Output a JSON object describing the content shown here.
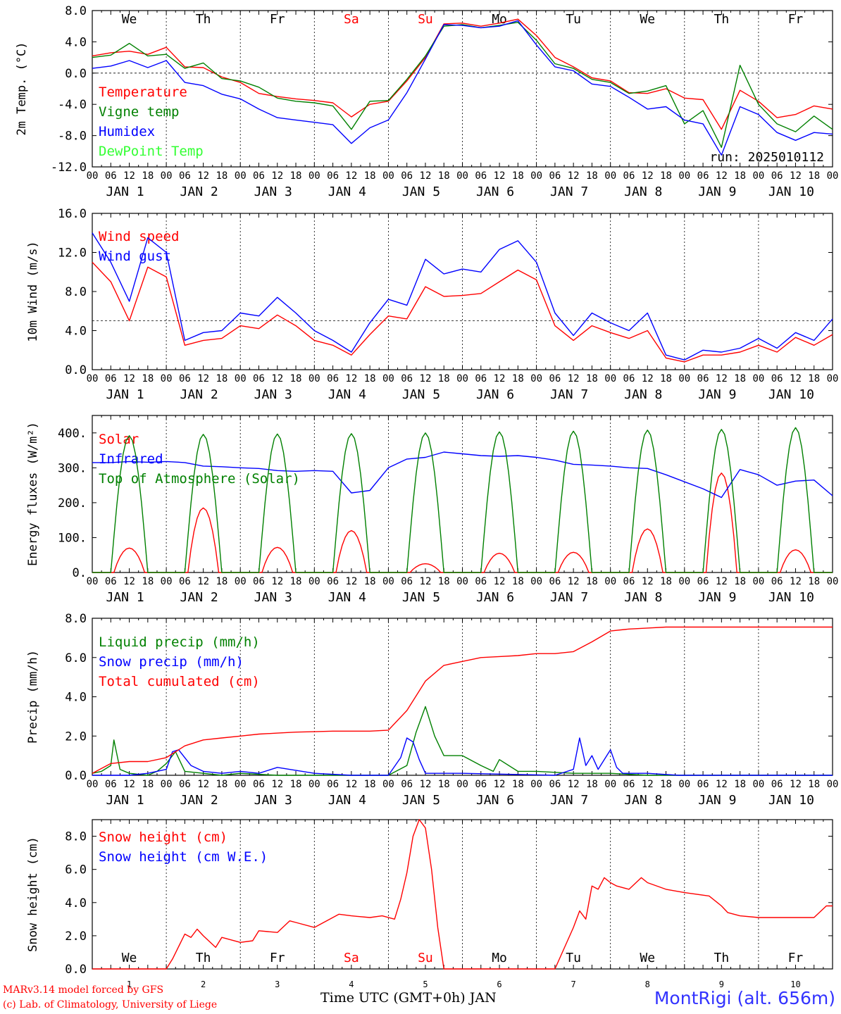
{
  "footer": {
    "model": "MARv3.14 model forced by GFS",
    "credit": "(c) Lab. of Climatology, University of Liege",
    "xlabel": "Time UTC (GMT+0h) JAN",
    "station": "MontRigi (alt. 656m)"
  },
  "days": {
    "weekdays": [
      "We",
      "Th",
      "Fr",
      "Sa",
      "Su",
      "Mo",
      "Tu",
      "We",
      "Th",
      "Fr"
    ],
    "weekend_color": "#ff0000",
    "date_labels": [
      "JAN  1",
      "JAN  2",
      "JAN  3",
      "JAN  4",
      "JAN  5",
      "JAN  6",
      "JAN  7",
      "JAN  8",
      "JAN  9",
      "JAN 10"
    ],
    "day_numbers": [
      "1",
      "2",
      "3",
      "4",
      "5",
      "6",
      "7",
      "8",
      "9",
      "10"
    ],
    "hour_ticks": [
      "00",
      "06",
      "12",
      "18"
    ],
    "final_tick": "00"
  },
  "chart_data": [
    {
      "type": "line",
      "ylabel": "2m Temp. (°C)",
      "ylim": [
        -12,
        8
      ],
      "yticks": [
        "8.0",
        "4.0",
        "0.0",
        "-4.0",
        "-8.0",
        "-12.0"
      ],
      "yvals": [
        8,
        4,
        0,
        -4,
        -8,
        -12
      ],
      "refline": 0,
      "annotation": "run: 2025010112",
      "x_unit": "hours since JAN 1 00 UTC",
      "series": [
        {
          "name": "Temperature",
          "color": "#ff0000",
          "x": [
            0,
            6,
            12,
            18,
            24,
            30,
            36,
            42,
            48,
            54,
            60,
            66,
            72,
            78,
            84,
            90,
            96,
            102,
            108,
            114,
            120,
            126,
            132,
            138,
            144,
            150,
            156,
            162,
            168,
            174,
            180,
            186,
            192,
            198,
            204,
            210,
            216,
            222,
            228,
            234,
            240
          ],
          "y": [
            2.2,
            2.6,
            2.8,
            2.4,
            3.3,
            0.8,
            0.7,
            -0.5,
            -1.2,
            -2.6,
            -3.0,
            -3.3,
            -3.5,
            -3.8,
            -5.6,
            -4.0,
            -3.6,
            -1.0,
            2.0,
            6.3,
            6.4,
            6.0,
            6.4,
            6.9,
            4.8,
            2.0,
            0.8,
            -0.6,
            -1.0,
            -2.5,
            -2.6,
            -2.0,
            -3.2,
            -3.4,
            -7.2,
            -2.2,
            -3.6,
            -5.7,
            -5.3,
            -4.2,
            -4.6
          ]
        },
        {
          "name": "Vigne temp",
          "color": "#008000",
          "x": [
            0,
            6,
            12,
            18,
            24,
            30,
            36,
            42,
            48,
            54,
            60,
            66,
            72,
            78,
            84,
            90,
            96,
            102,
            108,
            114,
            120,
            126,
            132,
            138,
            144,
            150,
            156,
            162,
            168,
            174,
            180,
            186,
            192,
            198,
            204,
            210,
            216,
            222,
            228,
            234,
            240
          ],
          "y": [
            2.0,
            2.3,
            3.8,
            2.2,
            2.4,
            0.6,
            1.3,
            -0.7,
            -1.0,
            -1.8,
            -3.2,
            -3.6,
            -3.8,
            -4.2,
            -7.2,
            -3.6,
            -3.5,
            -0.8,
            2.2,
            6.0,
            6.2,
            5.8,
            6.1,
            6.5,
            4.2,
            1.2,
            0.6,
            -0.8,
            -1.2,
            -2.6,
            -2.3,
            -1.6,
            -6.5,
            -4.8,
            -9.5,
            1.0,
            -4.0,
            -6.5,
            -7.5,
            -5.5,
            -7.2
          ]
        },
        {
          "name": "Humidex",
          "color": "#0000ff",
          "x": [
            0,
            6,
            12,
            18,
            24,
            30,
            36,
            42,
            48,
            54,
            60,
            66,
            72,
            78,
            84,
            90,
            96,
            102,
            108,
            114,
            120,
            126,
            132,
            138,
            144,
            150,
            156,
            162,
            168,
            174,
            180,
            186,
            192,
            198,
            204,
            210,
            216,
            222,
            228,
            234,
            240
          ],
          "y": [
            0.6,
            0.9,
            1.6,
            0.7,
            1.6,
            -1.2,
            -1.6,
            -2.7,
            -3.3,
            -4.6,
            -5.7,
            -6.0,
            -6.3,
            -6.6,
            -9.0,
            -7.0,
            -6.0,
            -2.5,
            1.8,
            6.2,
            6.1,
            5.8,
            6.0,
            6.7,
            3.6,
            0.8,
            0.3,
            -1.4,
            -1.7,
            -3.1,
            -4.6,
            -4.3,
            -6.0,
            -6.5,
            -10.5,
            -4.3,
            -5.3,
            -7.6,
            -8.6,
            -7.6,
            -7.8
          ]
        },
        {
          "name": "DewPoint Temp",
          "color": "#33ff33",
          "x": [],
          "y": []
        }
      ]
    },
    {
      "type": "line",
      "ylabel": "10m Wind (m/s)",
      "ylim": [
        0,
        16
      ],
      "yticks": [
        "16.0",
        "12.0",
        "8.0",
        "4.0",
        "0.0"
      ],
      "yvals": [
        16,
        12,
        8,
        4,
        0
      ],
      "refline": 5,
      "x_unit": "hours since JAN 1 00 UTC",
      "series": [
        {
          "name": "Wind speed",
          "color": "#ff0000",
          "x": [
            0,
            6,
            12,
            18,
            24,
            30,
            36,
            42,
            48,
            54,
            60,
            66,
            72,
            78,
            84,
            90,
            96,
            102,
            108,
            114,
            120,
            126,
            132,
            138,
            144,
            150,
            156,
            162,
            168,
            174,
            180,
            186,
            192,
            198,
            204,
            210,
            216,
            222,
            228,
            234,
            240
          ],
          "y": [
            11.0,
            9.0,
            5.0,
            10.5,
            9.5,
            2.5,
            3.0,
            3.2,
            4.5,
            4.2,
            5.6,
            4.5,
            3.0,
            2.5,
            1.5,
            3.6,
            5.5,
            5.2,
            8.5,
            7.5,
            7.6,
            7.8,
            9.0,
            10.2,
            9.2,
            4.5,
            3.0,
            4.5,
            3.8,
            3.2,
            4.0,
            1.2,
            0.8,
            1.5,
            1.5,
            1.8,
            2.5,
            1.8,
            3.3,
            2.5,
            3.6
          ]
        },
        {
          "name": "Wind gust",
          "color": "#0000ff",
          "x": [
            0,
            6,
            12,
            18,
            24,
            30,
            36,
            42,
            48,
            54,
            60,
            66,
            72,
            78,
            84,
            90,
            96,
            102,
            108,
            114,
            120,
            126,
            132,
            138,
            144,
            150,
            156,
            162,
            168,
            174,
            180,
            186,
            192,
            198,
            204,
            210,
            216,
            222,
            228,
            234,
            240
          ],
          "y": [
            14.0,
            11.0,
            7.0,
            13.5,
            12.0,
            3.0,
            3.8,
            4.0,
            5.8,
            5.5,
            7.4,
            5.8,
            4.0,
            3.0,
            1.8,
            4.8,
            7.2,
            6.6,
            11.3,
            9.8,
            10.3,
            10.0,
            12.3,
            13.2,
            11.0,
            5.8,
            3.5,
            5.8,
            4.8,
            4.0,
            5.8,
            1.5,
            1.0,
            2.0,
            1.8,
            2.2,
            3.2,
            2.2,
            3.8,
            3.0,
            5.2
          ]
        }
      ]
    },
    {
      "type": "line",
      "ylabel": "Energy fluxes (W/m²)",
      "ylim": [
        0,
        450
      ],
      "yticks": [
        "400.",
        "300.",
        "200.",
        "100.",
        "0."
      ],
      "yvals": [
        400,
        300,
        200,
        100,
        0
      ],
      "x_unit": "hours since JAN 1 00 UTC",
      "series": [
        {
          "name": "Solar",
          "color": "#ff0000",
          "peak_hours": [
            12,
            36,
            60,
            84,
            108,
            132,
            156,
            180,
            204,
            228
          ],
          "peaks": [
            70,
            185,
            72,
            120,
            25,
            55,
            58,
            125,
            285,
            65
          ]
        },
        {
          "name": "Infrared",
          "color": "#0000ff",
          "x": [
            0,
            6,
            12,
            18,
            24,
            30,
            36,
            42,
            48,
            54,
            60,
            66,
            72,
            78,
            84,
            90,
            96,
            102,
            108,
            114,
            120,
            126,
            132,
            138,
            144,
            150,
            156,
            162,
            168,
            174,
            180,
            186,
            192,
            198,
            204,
            210,
            216,
            222,
            228,
            234,
            240
          ],
          "y": [
            315,
            315,
            318,
            316,
            318,
            315,
            305,
            303,
            300,
            298,
            292,
            290,
            292,
            290,
            228,
            235,
            300,
            325,
            330,
            345,
            340,
            335,
            333,
            335,
            330,
            322,
            310,
            308,
            305,
            300,
            298,
            280,
            260,
            240,
            215,
            295,
            280,
            250,
            262,
            265,
            220
          ]
        },
        {
          "name": "Top of Atmosphere (Solar)",
          "color": "#008000",
          "peak_hours": [
            12,
            36,
            60,
            84,
            108,
            132,
            156,
            180,
            204,
            228
          ],
          "peaks": [
            392,
            396,
            397,
            398,
            400,
            403,
            405,
            408,
            410,
            415
          ]
        }
      ]
    },
    {
      "type": "line",
      "ylabel": "Precip (mm/h)",
      "ylim": [
        0,
        8
      ],
      "yticks": [
        "8.0",
        "6.0",
        "4.0",
        "2.0",
        "0.0"
      ],
      "yvals": [
        8,
        6,
        4,
        2,
        0
      ],
      "x_unit": "hours since JAN 1 00 UTC",
      "series": [
        {
          "name": "Liquid precip (mm/h)",
          "color": "#008000",
          "x": [
            0,
            3,
            6,
            7,
            9,
            12,
            18,
            21,
            24,
            27,
            30,
            36,
            42,
            48,
            60,
            72,
            96,
            102,
            105,
            108,
            111,
            114,
            120,
            126,
            130,
            132,
            138,
            144,
            156,
            168,
            180,
            192,
            240
          ],
          "y": [
            0.1,
            0.2,
            0.5,
            1.8,
            0.3,
            0.1,
            0,
            0.2,
            0.6,
            1.2,
            0.2,
            0.1,
            0,
            0.1,
            0,
            0,
            0,
            0.5,
            2.2,
            3.5,
            2.0,
            1.0,
            1.0,
            0.5,
            0.2,
            0.8,
            0.2,
            0.2,
            0.1,
            0.1,
            0,
            0,
            0
          ]
        },
        {
          "name": "Snow precip (mm/h)",
          "color": "#0000ff",
          "x": [
            0,
            12,
            18,
            24,
            26,
            28,
            32,
            36,
            42,
            48,
            54,
            60,
            72,
            84,
            90,
            96,
            100,
            102,
            104,
            106,
            108,
            120,
            150,
            156,
            158,
            160,
            162,
            164,
            166,
            168,
            170,
            172,
            180,
            190,
            240
          ],
          "y": [
            0,
            0,
            0.1,
            0.3,
            1.2,
            1.3,
            0.5,
            0.2,
            0.1,
            0.2,
            0.1,
            0.4,
            0.1,
            0,
            0,
            0,
            0.9,
            1.9,
            1.7,
            0.8,
            0.1,
            0.1,
            0,
            0.3,
            1.9,
            0.5,
            1.0,
            0.3,
            0.8,
            1.3,
            0.4,
            0.1,
            0.1,
            0,
            0
          ]
        },
        {
          "name": "Total cumulated (cm)",
          "color": "#ff0000",
          "x": [
            0,
            6,
            12,
            18,
            24,
            30,
            36,
            42,
            48,
            54,
            60,
            66,
            72,
            78,
            84,
            90,
            96,
            102,
            108,
            114,
            120,
            126,
            132,
            138,
            144,
            150,
            156,
            162,
            168,
            174,
            180,
            186,
            192,
            198,
            204,
            210,
            216,
            222,
            228,
            234,
            240
          ],
          "y": [
            0.1,
            0.6,
            0.7,
            0.7,
            0.9,
            1.5,
            1.8,
            1.9,
            2.0,
            2.1,
            2.15,
            2.2,
            2.22,
            2.25,
            2.25,
            2.25,
            2.3,
            3.3,
            4.8,
            5.6,
            5.8,
            6.0,
            6.05,
            6.1,
            6.2,
            6.2,
            6.3,
            6.8,
            7.35,
            7.45,
            7.5,
            7.55,
            7.55,
            7.55,
            7.55,
            7.55,
            7.55,
            7.55,
            7.55,
            7.55,
            7.55
          ]
        }
      ]
    },
    {
      "type": "line",
      "ylabel": "Snow height (cm)",
      "ylim": [
        0,
        9
      ],
      "yticks": [
        "8.0",
        "6.0",
        "4.0",
        "2.0",
        "0.0"
      ],
      "yvals": [
        8,
        6,
        4,
        2,
        0
      ],
      "x_unit": "hours since JAN 1 00 UTC",
      "series": [
        {
          "name": "Snow height (cm)",
          "color": "#ff0000",
          "x": [
            0,
            24,
            26,
            30,
            32,
            34,
            36,
            40,
            42,
            48,
            52,
            54,
            60,
            64,
            66,
            72,
            80,
            84,
            90,
            94,
            98,
            100,
            102,
            104,
            106,
            108,
            110,
            112,
            114,
            120,
            150,
            156,
            158,
            160,
            162,
            164,
            166,
            168,
            170,
            174,
            178,
            180,
            186,
            192,
            200,
            204,
            206,
            210,
            216,
            224,
            228,
            232,
            234,
            238,
            240
          ],
          "y": [
            0,
            0,
            0.6,
            2.1,
            1.9,
            2.4,
            2.0,
            1.3,
            1.9,
            1.6,
            1.7,
            2.3,
            2.2,
            2.9,
            2.8,
            2.5,
            3.3,
            3.2,
            3.1,
            3.2,
            3.0,
            4.2,
            5.8,
            8.0,
            9.0,
            8.5,
            6.0,
            2.5,
            0,
            0,
            0,
            2.5,
            3.5,
            3.0,
            5.0,
            4.8,
            5.5,
            5.2,
            5.0,
            4.8,
            5.5,
            5.2,
            4.8,
            4.6,
            4.4,
            3.8,
            3.4,
            3.2,
            3.1,
            3.1,
            3.1,
            3.1,
            3.1,
            3.8,
            3.8
          ]
        },
        {
          "name": "Snow height (cm W.E.)",
          "color": "#0000ff",
          "x": [],
          "y": []
        }
      ]
    }
  ]
}
